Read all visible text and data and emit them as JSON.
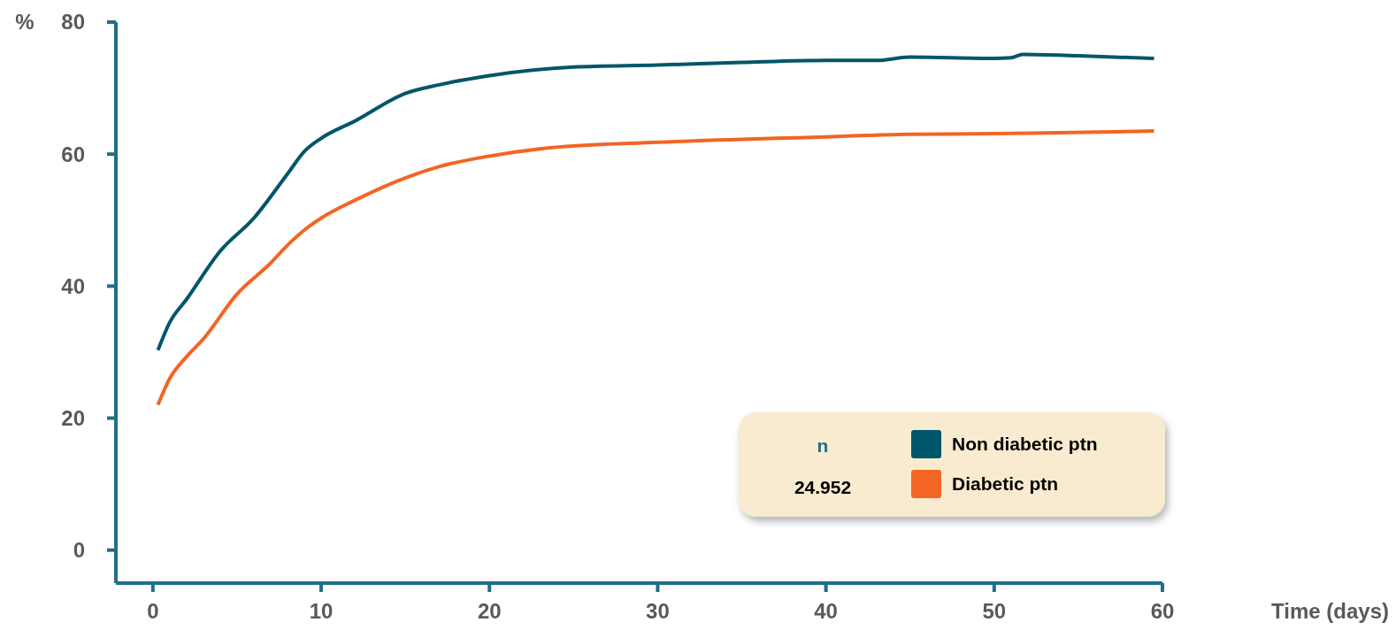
{
  "chart_data": {
    "type": "line",
    "xlabel": "Time (days)",
    "ylabel": "%",
    "xlim": [
      -2.2,
      60
    ],
    "ylim": [
      -5,
      80
    ],
    "xticks": [
      0,
      10,
      20,
      30,
      40,
      50,
      60
    ],
    "yticks": [
      0,
      20,
      40,
      60,
      80
    ],
    "grid": false,
    "legend": "bottom right",
    "annotations": [
      "n",
      "24.952"
    ],
    "series": [
      {
        "name": "Non diabetic ptn",
        "color": "#00566a",
        "x": [
          0.3,
          1,
          2,
          4,
          6,
          8,
          9,
          10,
          12,
          15,
          17,
          20,
          25,
          30,
          35,
          40,
          43,
          45,
          50,
          51,
          51.7,
          55,
          59.5
        ],
        "values": [
          30.3,
          34.5,
          38,
          45.3,
          50.3,
          57,
          60.4,
          62.4,
          65,
          69.2,
          70.5,
          71.9,
          73.2,
          73.5,
          73.9,
          74.2,
          74.2,
          74.7,
          74.5,
          74.6,
          75.1,
          74.9,
          74.5
        ]
      },
      {
        "name": "Diabetic ptn",
        "color": "#f26522",
        "x": [
          0.3,
          1,
          2,
          3,
          5,
          7,
          8,
          9,
          10,
          12,
          15,
          17,
          20,
          23,
          30,
          37,
          40,
          42,
          45,
          50,
          53,
          59.5
        ],
        "values": [
          22,
          26,
          29.3,
          32,
          38.8,
          43.5,
          46.2,
          48.5,
          50.3,
          53,
          56.4,
          58.1,
          59.7,
          60.8,
          61.8,
          62.4,
          62.6,
          62.8,
          63,
          63.1,
          63.2,
          63.5
        ]
      }
    ]
  }
}
